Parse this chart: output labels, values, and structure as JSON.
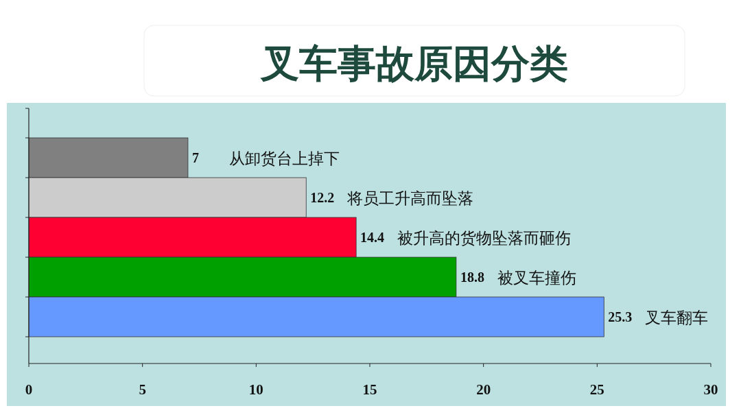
{
  "chart_data": {
    "type": "bar",
    "orientation": "horizontal",
    "title": "叉车事故原因分类",
    "categories": [
      "从卸货台上掉下",
      "将员工升高而坠落",
      "被升高的货物坠落而砸伤",
      "被叉车撞伤",
      "叉车翻车"
    ],
    "values": [
      7,
      12.2,
      14.4,
      18.8,
      25.3
    ],
    "colors": [
      "#808080",
      "#cccccc",
      "#ff0033",
      "#00a000",
      "#6699ff"
    ],
    "xlim": [
      0,
      30
    ],
    "xticks": [
      0,
      5,
      10,
      15,
      20,
      25,
      30
    ],
    "data_labels": true
  }
}
